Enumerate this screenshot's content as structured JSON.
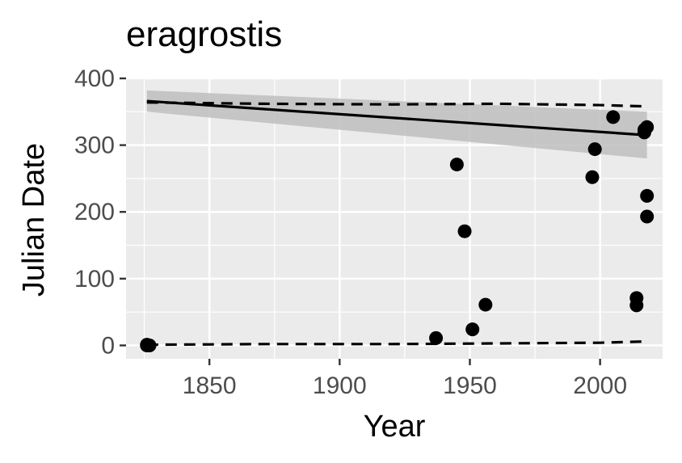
{
  "chart_data": {
    "type": "scatter",
    "title": "eragrostis",
    "xlabel": "Year",
    "ylabel": "Julian Date",
    "xlim": [
      1818,
      2024
    ],
    "ylim": [
      -20,
      400
    ],
    "x_ticks": [
      1850,
      1900,
      1950,
      2000
    ],
    "y_ticks": [
      0,
      100,
      200,
      300,
      400
    ],
    "grid": true,
    "panel_background": "#ebebeb",
    "grid_color": "#ffffff",
    "point_color": "#000000",
    "band_color": "#bebebe",
    "points": [
      {
        "x": 1826,
        "y": 0
      },
      {
        "x": 1826,
        "y": 1
      },
      {
        "x": 1827,
        "y": 0
      },
      {
        "x": 1937,
        "y": 11
      },
      {
        "x": 1945,
        "y": 271
      },
      {
        "x": 1948,
        "y": 171
      },
      {
        "x": 1951,
        "y": 24
      },
      {
        "x": 1956,
        "y": 61
      },
      {
        "x": 1997,
        "y": 252
      },
      {
        "x": 1998,
        "y": 294
      },
      {
        "x": 2005,
        "y": 342
      },
      {
        "x": 2014,
        "y": 71
      },
      {
        "x": 2014,
        "y": 60
      },
      {
        "x": 2017,
        "y": 319
      },
      {
        "x": 2017,
        "y": 323
      },
      {
        "x": 2018,
        "y": 327
      },
      {
        "x": 2018,
        "y": 224
      },
      {
        "x": 2018,
        "y": 193
      }
    ],
    "trend_line": {
      "x": [
        1826,
        2018
      ],
      "y": [
        366,
        315
      ]
    },
    "confidence_band": {
      "x": [
        1826,
        2018
      ],
      "upper": [
        382,
        350
      ],
      "lower": [
        350,
        280
      ]
    },
    "upper_quantile_line": {
      "x": [
        1826,
        1870,
        1920,
        1960,
        2000,
        2018
      ],
      "y": [
        364,
        362,
        361,
        362,
        360,
        358
      ]
    },
    "lower_quantile_line": {
      "x": [
        1826,
        1870,
        1920,
        1960,
        2000,
        2018
      ],
      "y": [
        1,
        2,
        2,
        3,
        4,
        6
      ]
    }
  }
}
